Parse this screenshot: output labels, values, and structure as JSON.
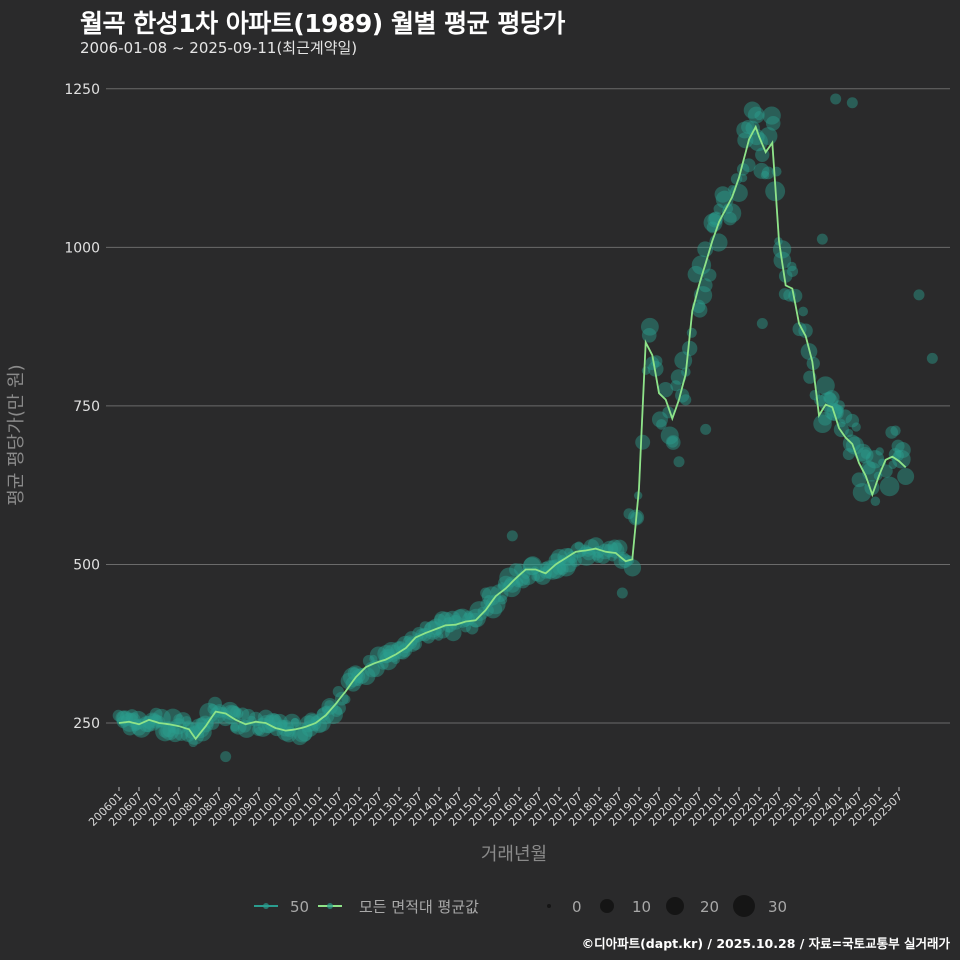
{
  "header": {
    "title": "월곡 한성1차 아파트(1989) 월별 평균 평당가",
    "subtitle": "2006-01-08 ~ 2025-09-11(최근계약일)"
  },
  "footer": {
    "credit": "©디아파트(dapt.kr) / 2025.10.28 / 자료=국토교통부 실거래가"
  },
  "colors": {
    "background": "#2a2a2b",
    "grid": "#6b6b6b",
    "bubble": "#2a9d8f",
    "line_avg": "#8fe388",
    "line_50": "#2a9d8f"
  },
  "chart_data": {
    "type": "line",
    "title": "월곡 한성1차 아파트(1989) 월별 평균 평당가",
    "subtitle": "2006-01-08 ~ 2025-09-11(최근계약일)",
    "xlabel": "거래년월",
    "ylabel": "평균 평당가(만 원)",
    "ylim": [
      150,
      1280
    ],
    "yticks": [
      250,
      500,
      750,
      1000,
      1250
    ],
    "grid": true,
    "legend_position": "bottom",
    "x_tick_labels": [
      "200601",
      "200607",
      "200701",
      "200707",
      "200801",
      "200807",
      "200901",
      "200907",
      "201001",
      "201007",
      "201101",
      "201107",
      "201201",
      "201207",
      "201301",
      "201307",
      "201401",
      "201407",
      "201501",
      "201507",
      "201601",
      "201607",
      "201701",
      "201707",
      "201801",
      "201807",
      "201901",
      "201907",
      "202001",
      "202007",
      "202101",
      "202107",
      "202201",
      "202207",
      "202301",
      "202307",
      "202401",
      "202407",
      "202501",
      "202507"
    ],
    "legend": {
      "lines": [
        {
          "label": "50",
          "color": "#2a9d8f"
        },
        {
          "label": "모든 면적대 평균값",
          "color": "#8fe388"
        }
      ],
      "size": [
        {
          "label": "0",
          "r": 2
        },
        {
          "label": "10",
          "r": 6.5
        },
        {
          "label": "20",
          "r": 9
        },
        {
          "label": "30",
          "r": 11
        }
      ]
    },
    "series": [
      {
        "name": "모든 면적대 평균값",
        "anchor_months": [
          "200601",
          "200604",
          "200607",
          "200610",
          "200701",
          "200704",
          "200707",
          "200710",
          "200712",
          "200803",
          "200806",
          "200809",
          "200812",
          "200903",
          "200906",
          "200909",
          "200912",
          "201003",
          "201006",
          "201009",
          "201012",
          "201103",
          "201106",
          "201109",
          "201112",
          "201203",
          "201206",
          "201209",
          "201212",
          "201303",
          "201306",
          "201309",
          "201312",
          "201403",
          "201406",
          "201409",
          "201412",
          "201503",
          "201506",
          "201509",
          "201512",
          "201603",
          "201606",
          "201609",
          "201612",
          "201703",
          "201706",
          "201709",
          "201712",
          "201803",
          "201806",
          "201809",
          "201811",
          "201901",
          "201903",
          "201905",
          "201907",
          "201909",
          "201911",
          "202001",
          "202003",
          "202005",
          "202007",
          "202009",
          "202011",
          "202101",
          "202103",
          "202105",
          "202107",
          "202109",
          "202110",
          "202111",
          "202112",
          "202201",
          "202203",
          "202205",
          "202207",
          "202209",
          "202211",
          "202301",
          "202303",
          "202305",
          "202307",
          "202309",
          "202311",
          "202401",
          "202403",
          "202405",
          "202407",
          "202409",
          "202411",
          "202501",
          "202503",
          "202505",
          "202507",
          "202509"
        ],
        "values": [
          250,
          252,
          248,
          255,
          250,
          248,
          245,
          240,
          225,
          245,
          268,
          265,
          255,
          248,
          252,
          250,
          242,
          238,
          240,
          244,
          250,
          262,
          280,
          300,
          322,
          338,
          345,
          350,
          358,
          368,
          385,
          392,
          398,
          404,
          405,
          410,
          412,
          428,
          450,
          462,
          478,
          492,
          492,
          486,
          500,
          510,
          520,
          522,
          525,
          520,
          518,
          505,
          508,
          620,
          850,
          830,
          770,
          760,
          730,
          760,
          800,
          900,
          940,
          975,
          1010,
          1040,
          1060,
          1080,
          1110,
          1150,
          1170,
          1180,
          1190,
          1175,
          1150,
          1165,
          1010,
          940,
          935,
          880,
          860,
          820,
          735,
          752,
          748,
          715,
          700,
          690,
          660,
          640,
          610,
          640,
          665,
          670,
          663,
          653
        ]
      }
    ]
  }
}
